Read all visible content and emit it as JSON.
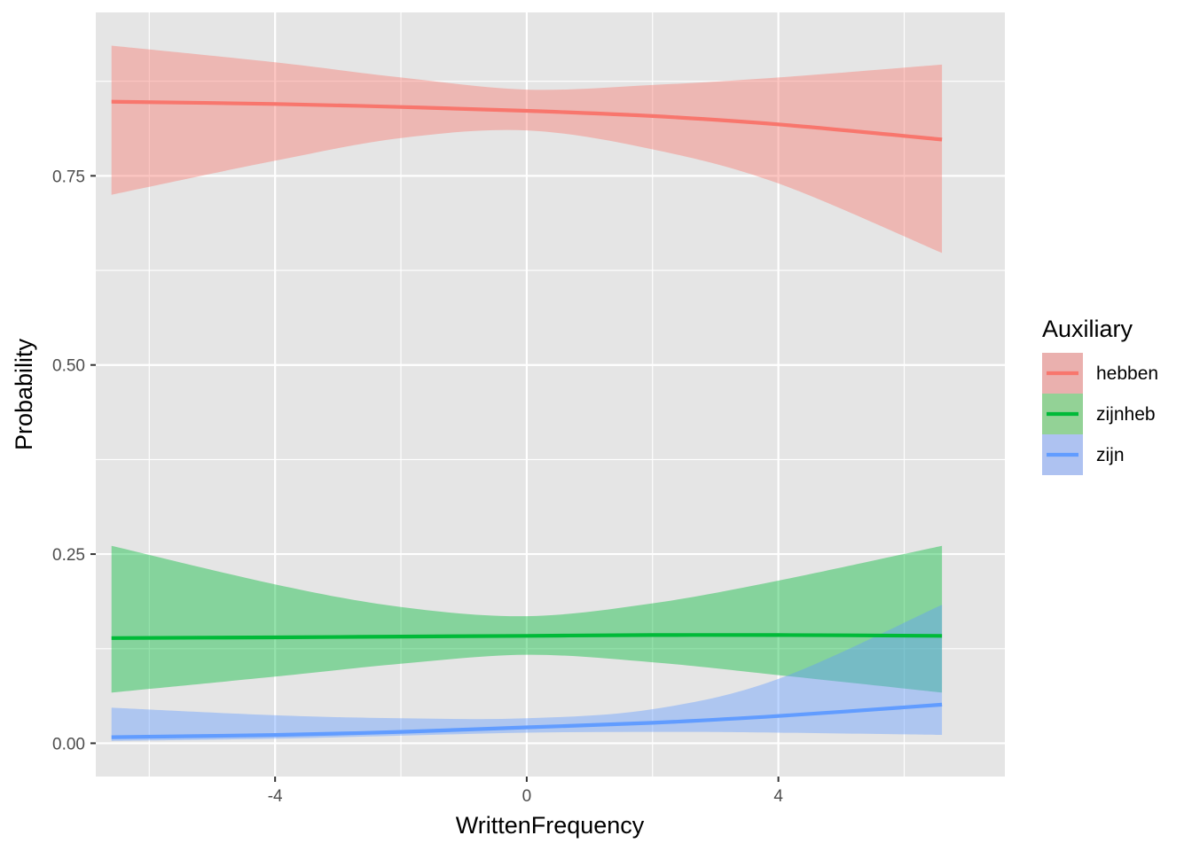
{
  "chart_data": {
    "type": "line",
    "xlabel": "WrittenFrequency",
    "ylabel": "Probability",
    "xlim": [
      -6.85,
      7.6
    ],
    "ylim": [
      -0.044,
      0.966
    ],
    "xticks": [
      -4,
      0,
      4
    ],
    "xtick_labels": [
      "-4",
      "0",
      "4"
    ],
    "yticks": [
      0,
      0.25,
      0.5,
      0.75
    ],
    "ytick_labels": [
      "0.00",
      "0.25",
      "0.50",
      "0.75"
    ],
    "x_minor_grid": [
      -6,
      -2,
      2,
      6
    ],
    "y_minor_grid": [
      0.125,
      0.375,
      0.625,
      0.875
    ],
    "grid": true,
    "background": "#e5e5e5",
    "legend": {
      "title": "Auxiliary",
      "position": "right"
    },
    "x": [
      -6.6,
      -4,
      -2,
      0,
      2,
      4,
      6.6
    ],
    "series": [
      {
        "name": "hebben",
        "color": "#f8766d",
        "fill": "#eab0ae",
        "values": [
          0.848,
          0.845,
          0.841,
          0.836,
          0.829,
          0.818,
          0.798
        ],
        "lower": [
          0.725,
          0.77,
          0.8,
          0.81,
          0.785,
          0.74,
          0.648
        ],
        "upper": [
          0.922,
          0.9,
          0.88,
          0.864,
          0.87,
          0.88,
          0.897
        ]
      },
      {
        "name": "zijnheb",
        "color": "#00ba38",
        "fill": "#93d296",
        "values": [
          0.139,
          0.14,
          0.141,
          0.142,
          0.143,
          0.143,
          0.142
        ],
        "lower": [
          0.067,
          0.088,
          0.105,
          0.117,
          0.107,
          0.09,
          0.067
        ],
        "upper": [
          0.261,
          0.21,
          0.18,
          0.168,
          0.185,
          0.215,
          0.261
        ]
      },
      {
        "name": "zijn",
        "color": "#619cff",
        "fill": "#aec2f1",
        "values": [
          0.008,
          0.011,
          0.015,
          0.021,
          0.027,
          0.036,
          0.051
        ],
        "lower": [
          0.003,
          0.006,
          0.01,
          0.014,
          0.015,
          0.014,
          0.011
        ],
        "upper": [
          0.047,
          0.037,
          0.033,
          0.033,
          0.045,
          0.085,
          0.183
        ]
      }
    ]
  }
}
